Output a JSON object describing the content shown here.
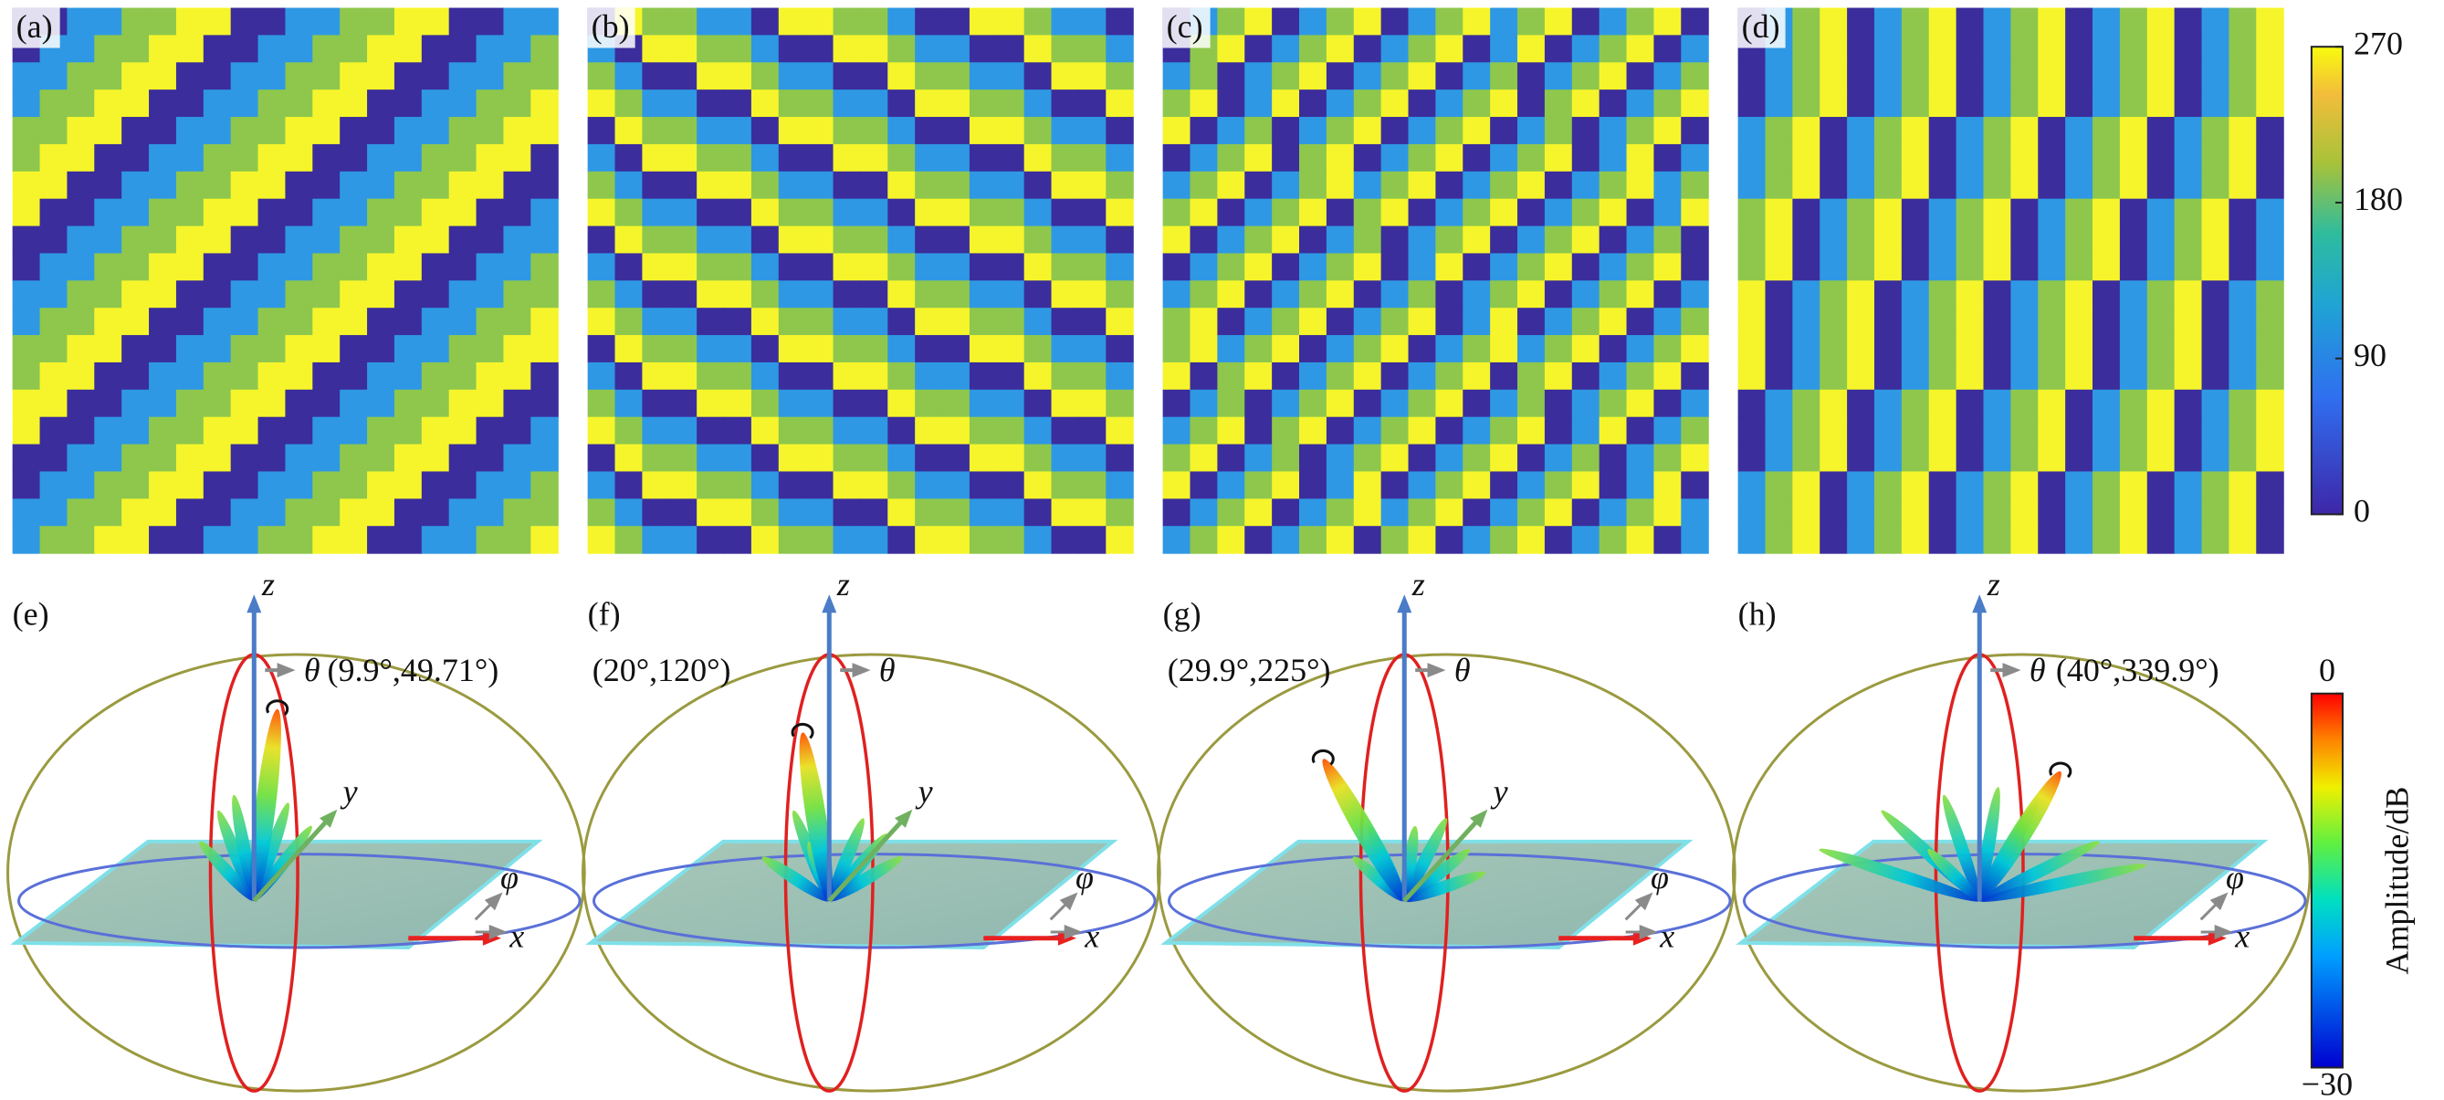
{
  "top_panels": [
    {
      "label": "(a)"
    },
    {
      "label": "(b)"
    },
    {
      "label": "(c)"
    },
    {
      "label": "(d)"
    }
  ],
  "colorbar_top": {
    "lim": [
      0,
      270
    ],
    "ticks": [
      0,
      90,
      180,
      270
    ]
  },
  "bottom_panels": [
    {
      "label": "(e)",
      "direction": "(9.9°,49.71°)",
      "axes": {
        "z": "z",
        "theta": "θ",
        "y": "y",
        "phi": "φ",
        "x": "x"
      }
    },
    {
      "label": "(f)",
      "direction": "(20°,120°)",
      "axes": {
        "z": "z",
        "theta": "θ",
        "y": "y",
        "phi": "φ",
        "x": "x"
      }
    },
    {
      "label": "(g)",
      "direction": "(29.9°,225°)",
      "axes": {
        "z": "z",
        "theta": "θ",
        "y": "y",
        "phi": "φ",
        "x": "x"
      }
    },
    {
      "label": "(h)",
      "direction": "(40°,339.9°)",
      "axes": {
        "z": "z",
        "theta": "θ",
        "phi": "φ",
        "x": "x"
      }
    }
  ],
  "colorbar_bottom": {
    "title": "Amplitude/dB",
    "lim": [
      -30,
      0
    ],
    "ticks": [
      {
        "value": -30,
        "label": "−30"
      },
      0
    ]
  }
}
